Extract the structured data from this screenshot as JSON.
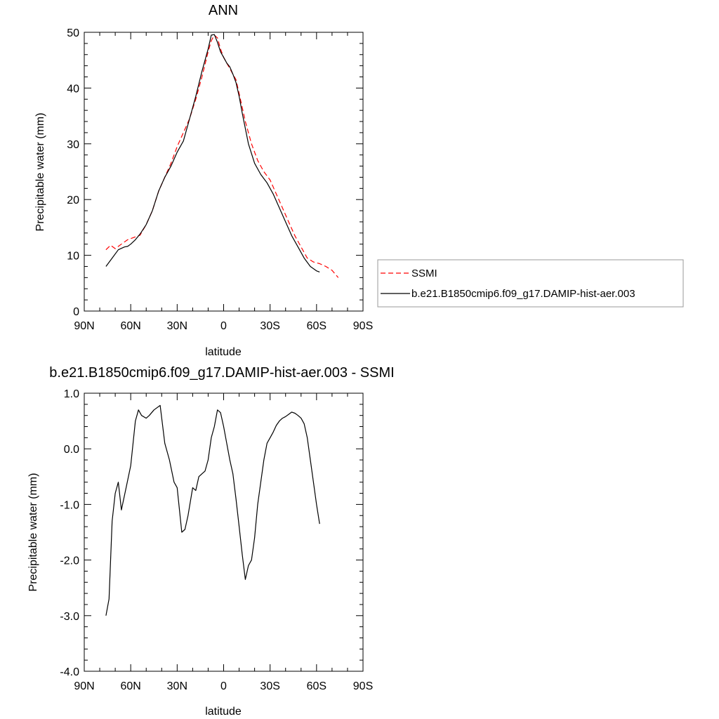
{
  "chart_data": [
    {
      "type": "line",
      "title": "ANN",
      "xlabel": "latitude",
      "ylabel": "Precipitable water (mm)",
      "xlim": [
        -90,
        90
      ],
      "ylim": [
        0,
        50
      ],
      "x_ticks": [
        -90,
        -60,
        -30,
        0,
        30,
        60,
        90
      ],
      "x_tick_labels": [
        "90N",
        "60N",
        "30N",
        "0",
        "30S",
        "60S",
        "90S"
      ],
      "y_ticks": [
        0,
        10,
        20,
        30,
        40,
        50
      ],
      "y_tick_labels": [
        "0",
        "10",
        "20",
        "30",
        "40",
        "50"
      ],
      "grid": false,
      "legend": "outside-right",
      "series": [
        {
          "name": "SSMI",
          "color": "#ff0000",
          "style": "dashed",
          "x": [
            -76,
            -73,
            -70,
            -66,
            -62,
            -58,
            -54,
            -50,
            -46,
            -42,
            -38,
            -34,
            -30,
            -26,
            -22,
            -18,
            -14,
            -10,
            -8,
            -6,
            -4,
            -2,
            0,
            2,
            4,
            6,
            8,
            10,
            14,
            18,
            22,
            26,
            30,
            34,
            38,
            42,
            46,
            50,
            54,
            58,
            62,
            66,
            70,
            74
          ],
          "y": [
            11,
            11.8,
            11.2,
            12,
            12.8,
            13.2,
            13.6,
            15.5,
            18,
            21.5,
            24,
            26.5,
            29.5,
            32,
            34.5,
            38,
            42,
            46.5,
            48.5,
            49.5,
            49,
            47,
            45.5,
            44.5,
            43.5,
            42.5,
            41.5,
            39,
            34,
            30,
            27,
            25,
            23.5,
            21,
            18.5,
            16,
            13.5,
            11.5,
            9.5,
            8.8,
            8.5,
            8,
            7.3,
            6
          ]
        },
        {
          "name": "b.e21.B1850cmip6.f09_g17.DAMIP-hist-aer.003",
          "color": "#000000",
          "style": "solid",
          "x": [
            -76,
            -72,
            -68,
            -64,
            -62,
            -60,
            -57,
            -54,
            -50,
            -46,
            -42,
            -38,
            -34,
            -30,
            -26,
            -22,
            -18,
            -14,
            -10,
            -8,
            -6,
            -4,
            -2,
            0,
            2,
            4,
            6,
            8,
            10,
            12,
            16,
            20,
            24,
            28,
            32,
            36,
            40,
            44,
            48,
            52,
            56,
            60,
            62
          ],
          "y": [
            8,
            9.5,
            11,
            11.5,
            11.6,
            12,
            12.8,
            13.8,
            15.5,
            18,
            21.5,
            24,
            26,
            28.5,
            30.5,
            34.5,
            38.5,
            43,
            47,
            49.5,
            49.6,
            48.2,
            46.5,
            45.5,
            44.5,
            43.8,
            42.5,
            41,
            38.5,
            35.5,
            30,
            26.5,
            24.5,
            23,
            21,
            18.5,
            16,
            13.5,
            11.5,
            9.5,
            8,
            7.2,
            7
          ]
        }
      ]
    },
    {
      "type": "line",
      "title": "b.e21.B1850cmip6.f09_g17.DAMIP-hist-aer.003 - SSMI",
      "xlabel": "latitude",
      "ylabel": "Precipitable water (mm)",
      "xlim": [
        -90,
        90
      ],
      "ylim": [
        -4,
        1
      ],
      "x_ticks": [
        -90,
        -60,
        -30,
        0,
        30,
        60,
        90
      ],
      "x_tick_labels": [
        "90N",
        "60N",
        "30N",
        "0",
        "30S",
        "60S",
        "90S"
      ],
      "y_ticks": [
        -4,
        -3,
        -2,
        -1,
        0,
        1
      ],
      "y_tick_labels": [
        "-4.0",
        "-3.0",
        "-2.0",
        "-1.0",
        "0.0",
        "1.0"
      ],
      "grid": false,
      "series": [
        {
          "color": "#000000",
          "style": "solid",
          "x": [
            -76,
            -74,
            -72,
            -70,
            -68,
            -66,
            -63,
            -60,
            -57,
            -55,
            -53,
            -50,
            -48,
            -45,
            -41,
            -38,
            -35,
            -32,
            -30,
            -27,
            -25,
            -23,
            -20,
            -18,
            -16,
            -14,
            -12,
            -10,
            -8,
            -6,
            -4,
            -2,
            0,
            2,
            4,
            6,
            8,
            10,
            12,
            14,
            16,
            18,
            20,
            22,
            24,
            26,
            28,
            30,
            32,
            34,
            36,
            38,
            40,
            42,
            44,
            46,
            48,
            50,
            52,
            54,
            56,
            58,
            60,
            62
          ],
          "y": [
            -3,
            -2.7,
            -1.3,
            -0.8,
            -0.6,
            -1.1,
            -0.7,
            -0.3,
            0.5,
            0.7,
            0.6,
            0.55,
            0.6,
            0.7,
            0.78,
            0.1,
            -0.2,
            -0.6,
            -0.7,
            -1.5,
            -1.45,
            -1.2,
            -0.7,
            -0.75,
            -0.5,
            -0.45,
            -0.4,
            -0.2,
            0.2,
            0.4,
            0.7,
            0.65,
            0.4,
            0.1,
            -0.2,
            -0.45,
            -0.9,
            -1.4,
            -1.9,
            -2.35,
            -2.1,
            -2,
            -1.6,
            -1,
            -0.6,
            -0.2,
            0.1,
            0.2,
            0.3,
            0.42,
            0.5,
            0.55,
            0.58,
            0.62,
            0.66,
            0.64,
            0.6,
            0.55,
            0.45,
            0.2,
            -0.2,
            -0.6,
            -1.0,
            -1.35
          ]
        }
      ]
    }
  ]
}
